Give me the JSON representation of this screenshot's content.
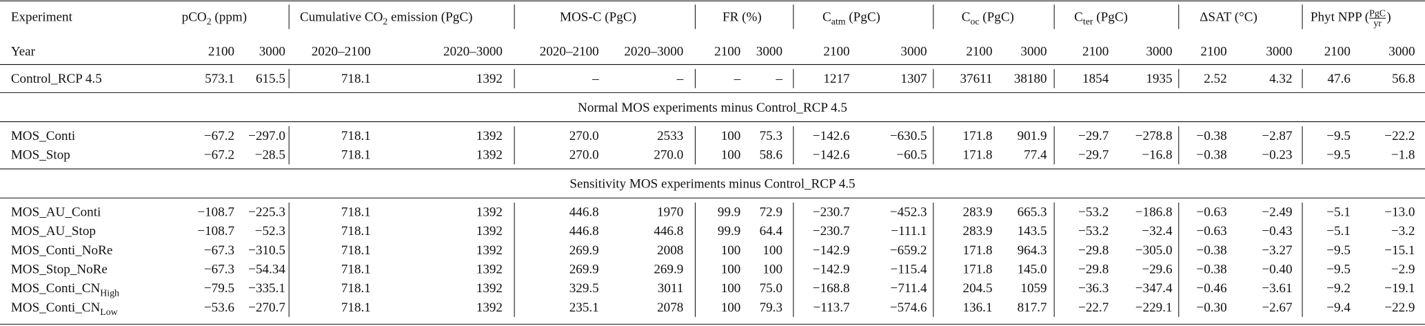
{
  "header": {
    "experiment": "Experiment",
    "year": "Year",
    "groups": [
      {
        "parts": [
          {
            "text": "pCO"
          },
          {
            "text": "2",
            "role": "sub"
          },
          {
            "text": " (ppm)"
          }
        ]
      },
      {
        "parts": [
          {
            "text": "Cumulative CO"
          },
          {
            "text": "2",
            "role": "sub"
          },
          {
            "text": " emission (PgC)"
          }
        ]
      },
      {
        "parts": [
          {
            "text": "MOS-C (PgC)"
          }
        ]
      },
      {
        "parts": [
          {
            "text": "FR (%)"
          }
        ]
      },
      {
        "parts": [
          {
            "text": "C"
          },
          {
            "text": "atm",
            "role": "sub"
          },
          {
            "text": " (PgC)"
          }
        ]
      },
      {
        "parts": [
          {
            "text": "C"
          },
          {
            "text": "oc",
            "role": "sub"
          },
          {
            "text": " (PgC)"
          }
        ]
      },
      {
        "parts": [
          {
            "text": "C"
          },
          {
            "text": "ter",
            "role": "sub"
          },
          {
            "text": " (PgC)"
          }
        ]
      },
      {
        "parts": [
          {
            "text": "ΔSAT (°C)"
          }
        ]
      },
      {
        "parts": [
          {
            "text": "Phyt NPP ("
          },
          {
            "text": "PgC",
            "role": "num"
          },
          {
            "text": "yr",
            "role": "den"
          },
          {
            "text": ")"
          }
        ]
      }
    ],
    "periods": [
      "2100",
      "3000",
      "2020–2100",
      "2020–3000",
      "2020–2100",
      "2020–3000",
      "2100",
      "3000",
      "2100",
      "3000",
      "2100",
      "3000",
      "2100",
      "3000",
      "2100",
      "3000",
      "2100",
      "3000"
    ]
  },
  "blocks": [
    {
      "rows": [
        {
          "label": "Control_RCP 4.5",
          "values": [
            "573.1",
            "615.5",
            "718.1",
            "1392",
            "–",
            "–",
            "–",
            "–",
            "1217",
            "1307",
            "37611",
            "38180",
            "1854",
            "1935",
            "2.52",
            "4.32",
            "47.6",
            "56.8"
          ]
        }
      ]
    },
    {
      "title": "Normal MOS experiments minus Control_RCP 4.5",
      "rows": [
        {
          "label": "MOS_Conti",
          "values": [
            "−67.2",
            "−297.0",
            "718.1",
            "1392",
            "270.0",
            "2533",
            "100",
            "75.3",
            "−142.6",
            "−630.5",
            "171.8",
            "901.9",
            "−29.7",
            "−278.8",
            "−0.38",
            "−2.87",
            "−9.5",
            "−22.2"
          ]
        },
        {
          "label": "MOS_Stop",
          "values": [
            "−67.2",
            "−28.5",
            "718.1",
            "1392",
            "270.0",
            "270.0",
            "100",
            "58.6",
            "−142.6",
            "−60.5",
            "171.8",
            "77.4",
            "−29.7",
            "−16.8",
            "−0.38",
            "−0.23",
            "−9.5",
            "−1.8"
          ]
        }
      ]
    },
    {
      "title": "Sensitivity MOS experiments minus Control_RCP 4.5",
      "rows": [
        {
          "label": "MOS_AU_Conti",
          "values": [
            "−108.7",
            "−225.3",
            "718.1",
            "1392",
            "446.8",
            "1970",
            "99.9",
            "72.9",
            "−230.7",
            "−452.3",
            "283.9",
            "665.3",
            "−53.2",
            "−186.8",
            "−0.63",
            "−2.49",
            "−5.1",
            "−13.0"
          ]
        },
        {
          "label": "MOS_AU_Stop",
          "values": [
            "−108.7",
            "−52.3",
            "718.1",
            "1392",
            "446.8",
            "446.8",
            "99.9",
            "64.4",
            "−230.7",
            "−111.1",
            "283.9",
            "143.5",
            "−53.2",
            "−32.4",
            "−0.63",
            "−0.43",
            "−5.1",
            "−3.2"
          ]
        },
        {
          "label": "MOS_Conti_NoRe",
          "values": [
            "−67.3",
            "−310.5",
            "718.1",
            "1392",
            "269.9",
            "2008",
            "100",
            "100",
            "−142.9",
            "−659.2",
            "171.8",
            "964.3",
            "−29.8",
            "−305.0",
            "−0.38",
            "−3.27",
            "−9.5",
            "−15.1"
          ]
        },
        {
          "label": "MOS_Stop_NoRe",
          "values": [
            "−67.3",
            "−54.34",
            "718.1",
            "1392",
            "269.9",
            "269.9",
            "100",
            "100",
            "−142.9",
            "−115.4",
            "171.8",
            "145.0",
            "−29.8",
            "−29.6",
            "−0.38",
            "−0.40",
            "−9.5",
            "−2.9"
          ]
        },
        {
          "label": "MOS_Conti_CN",
          "label_sub": "High",
          "values": [
            "−79.5",
            "−335.1",
            "718.1",
            "1392",
            "329.5",
            "3011",
            "100",
            "75.0",
            "−168.8",
            "−711.4",
            "204.5",
            "1059",
            "−36.3",
            "−347.4",
            "−0.46",
            "−3.61",
            "−9.2",
            "−19.1"
          ]
        },
        {
          "label": "MOS_Conti_CN",
          "label_sub": "Low",
          "values": [
            "−53.6",
            "−270.7",
            "718.1",
            "1392",
            "235.1",
            "2078",
            "100",
            "79.3",
            "−113.7",
            "−574.6",
            "136.1",
            "817.7",
            "−22.7",
            "−229.1",
            "−0.30",
            "−2.67",
            "−9.4",
            "−22.9"
          ]
        }
      ]
    }
  ]
}
